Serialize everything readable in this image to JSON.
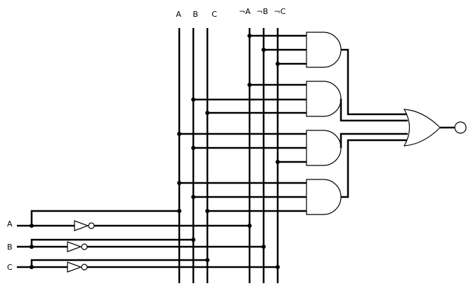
{
  "bus_labels": {
    "a": "A",
    "b": "B",
    "c": "C",
    "not_a": "¬A",
    "not_b": "¬B",
    "not_c": "¬C"
  },
  "input_labels": {
    "a": "A",
    "b": "B",
    "c": "C"
  },
  "gates": {
    "and": [
      "and-gate-1",
      "and-gate-2",
      "and-gate-3",
      "and-gate-4"
    ],
    "not": [
      "not-gate-a",
      "not-gate-b",
      "not-gate-c"
    ],
    "or": "or-gate",
    "inverted_output": true
  },
  "and_gate_inputs": [
    [
      "¬A",
      "¬B",
      "¬C"
    ],
    [
      "¬A",
      "B",
      "C"
    ],
    [
      "A",
      "B",
      "¬C"
    ],
    [
      "A",
      "B",
      "C"
    ]
  ]
}
